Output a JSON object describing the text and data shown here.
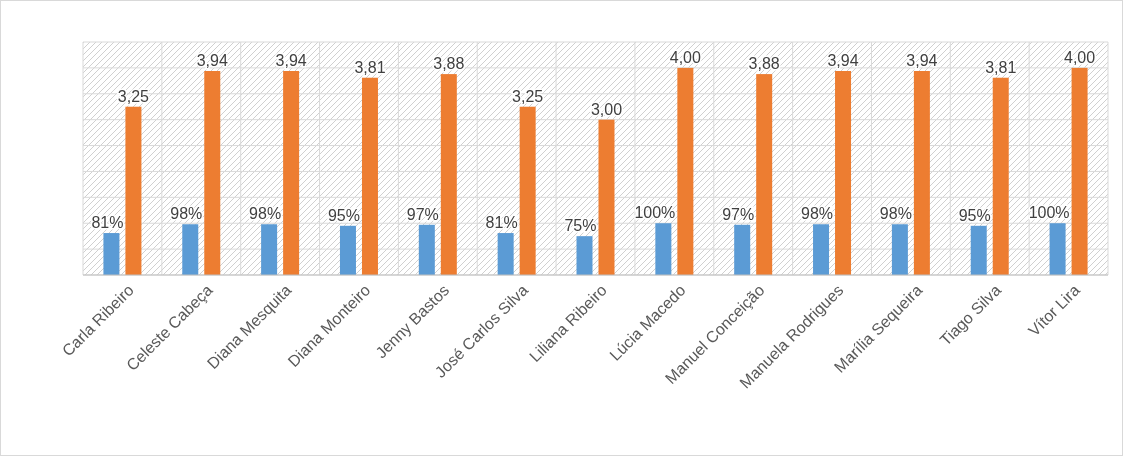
{
  "chart_data": {
    "type": "bar",
    "categories": [
      "Carla Ribeiro",
      "Celeste Cabeça",
      "Diana Mesquita",
      "Diana Monteiro",
      "Jenny Bastos",
      "José Carlos Silva",
      "Liliana Ribeiro",
      "Lúcia Macedo",
      "Manuel Conceição",
      "Manuela Rodrigues",
      "Marília Sequeira",
      "Tiago Silva",
      "Vítor Lira"
    ],
    "series": [
      {
        "color": "#5b9bd5",
        "values": [
          0.81,
          0.98,
          0.98,
          0.95,
          0.97,
          0.81,
          0.75,
          1.0,
          0.97,
          0.98,
          0.98,
          0.95,
          1.0
        ],
        "value_labels": [
          "81%",
          "98%",
          "98%",
          "95%",
          "97%",
          "81%",
          "75%",
          "100%",
          "97%",
          "98%",
          "98%",
          "95%",
          "100%"
        ]
      },
      {
        "color": "#ed7d31",
        "values": [
          3.25,
          3.94,
          3.94,
          3.81,
          3.88,
          3.25,
          3.0,
          4.0,
          3.88,
          3.94,
          3.94,
          3.81,
          4.0
        ],
        "value_labels": [
          "3,25",
          "3,94",
          "3,94",
          "3,81",
          "3,88",
          "3,25",
          "3,00",
          "4,00",
          "3,88",
          "3,94",
          "3,94",
          "3,81",
          "4,00"
        ]
      }
    ],
    "ylim": [
      0,
      4.5
    ],
    "yticks": [
      {
        "value": 0,
        "label": null
      },
      {
        "value": 0.5,
        "label": null
      },
      {
        "value": 1,
        "label": null
      },
      {
        "value": 1.5,
        "label": null
      },
      {
        "value": 2,
        "label": null
      },
      {
        "value": 2.5,
        "label": null
      },
      {
        "value": 3,
        "label": null
      },
      {
        "value": 3.5,
        "label": null
      },
      {
        "value": 4,
        "label": null
      },
      {
        "value": 4.5,
        "label": null
      }
    ],
    "tick_labels": "x",
    "grid": true
  }
}
